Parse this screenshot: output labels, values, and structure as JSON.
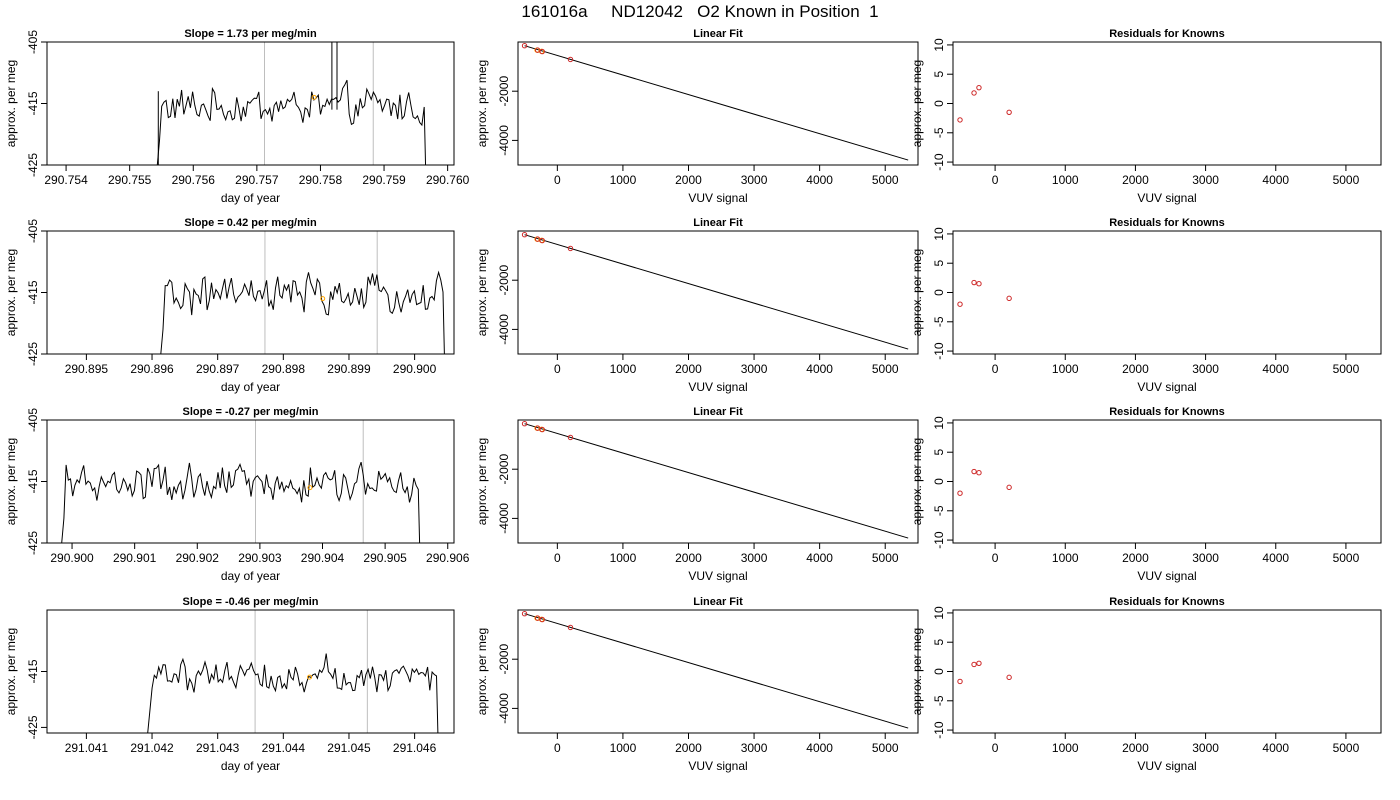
{
  "title": "161016a     ND12042   O2 Known in Position  1",
  "colors": {
    "trace": "#000000",
    "grid": "#bebebe",
    "marker": "#ffa500",
    "known": "#cd2626"
  },
  "chart_data": [
    {
      "type": "line",
      "title": "Slope =  1.73  per meg/min",
      "xlabel": "day of year",
      "ylabel": "approx. per meg",
      "xlim": [
        290.7537,
        290.7601
      ],
      "ylim": [
        -425,
        -405
      ],
      "xticks": [
        "290.754",
        "290.755",
        "290.756",
        "290.757",
        "290.758",
        "290.759",
        "290.760"
      ],
      "xtick_values": [
        290.754,
        290.755,
        290.756,
        290.757,
        290.758,
        290.759,
        290.76
      ],
      "yticks": [
        "-425",
        "-415",
        "-405"
      ],
      "ytick_values": [
        -425,
        -415,
        -405
      ],
      "vlines": [
        290.75712,
        290.75883
      ],
      "trace_start": 290.7554,
      "trace_end": 290.7597,
      "marker": {
        "x": 290.7579,
        "y": -414
      }
    },
    {
      "type": "line",
      "title": "Linear Fit",
      "xlabel": "VUV signal",
      "ylabel": "approx. per meg",
      "xlim": [
        -600,
        5500
      ],
      "ylim": [
        -5000,
        0
      ],
      "xticks": [
        "0",
        "1000",
        "2000",
        "3000",
        "4000",
        "5000"
      ],
      "xtick_values": [
        0,
        1000,
        2000,
        3000,
        4000,
        5000
      ],
      "yticks": [
        "-4000",
        "-2000"
      ],
      "ytick_values": [
        -4000,
        -2000
      ],
      "fit_line": {
        "x": [
          -500,
          5350
        ],
        "y": [
          -150,
          -4800
        ]
      },
      "knowns": {
        "x": [
          -500,
          -300,
          -230,
          200
        ],
        "y": [
          -150,
          -330,
          -390,
          -710
        ]
      },
      "samples": {
        "x": [
          -310,
          -240
        ],
        "y": [
          -330,
          -380
        ]
      }
    },
    {
      "type": "scatter",
      "title": "Residuals for Knowns",
      "xlabel": "VUV signal",
      "ylabel": "approx. per meg",
      "xlim": [
        -600,
        5500
      ],
      "ylim": [
        -10.5,
        10.5
      ],
      "xticks": [
        "0",
        "1000",
        "2000",
        "3000",
        "4000",
        "5000"
      ],
      "xtick_values": [
        0,
        1000,
        2000,
        3000,
        4000,
        5000
      ],
      "yticks": [
        "-10",
        "-5",
        "0",
        "5",
        "10"
      ],
      "ytick_values": [
        -10,
        -5,
        0,
        5,
        10
      ],
      "x": [
        -500,
        -300,
        -230,
        200
      ],
      "y": [
        -2.8,
        1.8,
        2.7,
        -1.5
      ]
    },
    {
      "type": "line",
      "title": "Slope =  0.42  per meg/min",
      "xlabel": "day of year",
      "ylabel": "approx. per meg",
      "xlim": [
        290.8944,
        290.9006
      ],
      "ylim": [
        -425,
        -405
      ],
      "xticks": [
        "290.895",
        "290.896",
        "290.897",
        "290.898",
        "290.899",
        "290.900"
      ],
      "xtick_values": [
        290.895,
        290.896,
        290.897,
        290.898,
        290.899,
        290.9
      ],
      "yticks": [
        "-425",
        "-415",
        "-405"
      ],
      "ytick_values": [
        -425,
        -415,
        -405
      ],
      "vlines": [
        290.89772,
        290.89943
      ],
      "trace_start": 290.8961,
      "trace_end": 290.9005,
      "marker": {
        "x": 290.8986,
        "y": -416
      }
    },
    {
      "type": "line",
      "title": "Linear Fit",
      "xlabel": "VUV signal",
      "ylabel": "approx. per meg",
      "xlim": [
        -600,
        5500
      ],
      "ylim": [
        -5000,
        0
      ],
      "xticks": [
        "0",
        "1000",
        "2000",
        "3000",
        "4000",
        "5000"
      ],
      "xtick_values": [
        0,
        1000,
        2000,
        3000,
        4000,
        5000
      ],
      "yticks": [
        "-4000",
        "-2000"
      ],
      "ytick_values": [
        -4000,
        -2000
      ],
      "fit_line": {
        "x": [
          -500,
          5350
        ],
        "y": [
          -150,
          -4800
        ]
      },
      "knowns": {
        "x": [
          -500,
          -300,
          -230,
          200
        ],
        "y": [
          -150,
          -330,
          -390,
          -710
        ]
      },
      "samples": {
        "x": [
          -310,
          -240
        ],
        "y": [
          -330,
          -380
        ]
      }
    },
    {
      "type": "scatter",
      "title": "Residuals for Knowns",
      "xlabel": "VUV signal",
      "ylabel": "approx. per meg",
      "xlim": [
        -600,
        5500
      ],
      "ylim": [
        -10.5,
        10.5
      ],
      "xticks": [
        "0",
        "1000",
        "2000",
        "3000",
        "4000",
        "5000"
      ],
      "xtick_values": [
        0,
        1000,
        2000,
        3000,
        4000,
        5000
      ],
      "yticks": [
        "-10",
        "-5",
        "0",
        "5",
        "10"
      ],
      "ytick_values": [
        -10,
        -5,
        0,
        5,
        10
      ],
      "x": [
        -500,
        -300,
        -230,
        200
      ],
      "y": [
        -2.0,
        1.7,
        1.5,
        -1.0
      ]
    },
    {
      "type": "line",
      "title": "Slope =  -0.27  per meg/min",
      "xlabel": "day of year",
      "ylabel": "approx. per meg",
      "xlim": [
        290.8996,
        290.9061
      ],
      "ylim": [
        -425,
        -405
      ],
      "xticks": [
        "290.900",
        "290.901",
        "290.902",
        "290.903",
        "290.904",
        "290.905",
        "290.906"
      ],
      "xtick_values": [
        290.9,
        290.901,
        290.902,
        290.903,
        290.904,
        290.905,
        290.906
      ],
      "yticks": [
        "-425",
        "-415",
        "-405"
      ],
      "ytick_values": [
        -425,
        -415,
        -405
      ],
      "vlines": [
        290.90293,
        290.90465
      ],
      "trace_start": 290.8998,
      "trace_end": 290.9056,
      "marker": {
        "x": 290.9038,
        "y": -416
      }
    },
    {
      "type": "line",
      "title": "Linear Fit",
      "xlabel": "VUV signal",
      "ylabel": "approx. per meg",
      "xlim": [
        -600,
        5500
      ],
      "ylim": [
        -5000,
        0
      ],
      "xticks": [
        "0",
        "1000",
        "2000",
        "3000",
        "4000",
        "5000"
      ],
      "xtick_values": [
        0,
        1000,
        2000,
        3000,
        4000,
        5000
      ],
      "yticks": [
        "-4000",
        "-2000"
      ],
      "ytick_values": [
        -4000,
        -2000
      ],
      "fit_line": {
        "x": [
          -500,
          5350
        ],
        "y": [
          -150,
          -4800
        ]
      },
      "knowns": {
        "x": [
          -500,
          -300,
          -230,
          200
        ],
        "y": [
          -150,
          -330,
          -390,
          -710
        ]
      },
      "samples": {
        "x": [
          -310,
          -240
        ],
        "y": [
          -330,
          -380
        ]
      }
    },
    {
      "type": "scatter",
      "title": "Residuals for Knowns",
      "xlabel": "VUV signal",
      "ylabel": "approx. per meg",
      "xlim": [
        -600,
        5500
      ],
      "ylim": [
        -10.5,
        10.5
      ],
      "xticks": [
        "0",
        "1000",
        "2000",
        "3000",
        "4000",
        "5000"
      ],
      "xtick_values": [
        0,
        1000,
        2000,
        3000,
        4000,
        5000
      ],
      "yticks": [
        "-10",
        "-5",
        "0",
        "5",
        "10"
      ],
      "ytick_values": [
        -10,
        -5,
        0,
        5,
        10
      ],
      "x": [
        -500,
        -300,
        -230,
        200
      ],
      "y": [
        -2.0,
        1.7,
        1.5,
        -1.0
      ]
    },
    {
      "type": "line",
      "title": "Slope =  -0.46  per meg/min",
      "xlabel": "day of year",
      "ylabel": "approx. per meg",
      "xlim": [
        291.0404,
        291.0466
      ],
      "ylim": [
        -426,
        -404
      ],
      "xticks": [
        "291.041",
        "291.042",
        "291.043",
        "291.044",
        "291.045",
        "291.046"
      ],
      "xtick_values": [
        291.041,
        291.042,
        291.043,
        291.044,
        291.045,
        291.046
      ],
      "yticks": [
        "-425",
        "-415"
      ],
      "ytick_values": [
        -425,
        -415
      ],
      "vlines": [
        291.04357,
        291.04528
      ],
      "trace_start": 291.0419,
      "trace_end": 291.0464,
      "marker": {
        "x": 291.0444,
        "y": -416
      }
    },
    {
      "type": "line",
      "title": "Linear Fit",
      "xlabel": "VUV signal",
      "ylabel": "approx. per meg",
      "xlim": [
        -600,
        5500
      ],
      "ylim": [
        -5000,
        0
      ],
      "xticks": [
        "0",
        "1000",
        "2000",
        "3000",
        "4000",
        "5000"
      ],
      "xtick_values": [
        0,
        1000,
        2000,
        3000,
        4000,
        5000
      ],
      "yticks": [
        "-4000",
        "-2000"
      ],
      "ytick_values": [
        -4000,
        -2000
      ],
      "fit_line": {
        "x": [
          -500,
          5350
        ],
        "y": [
          -150,
          -4800
        ]
      },
      "knowns": {
        "x": [
          -500,
          -300,
          -230,
          200
        ],
        "y": [
          -150,
          -330,
          -390,
          -710
        ]
      },
      "samples": {
        "x": [
          -310,
          -240
        ],
        "y": [
          -330,
          -380
        ]
      }
    },
    {
      "type": "scatter",
      "title": "Residuals for Knowns",
      "xlabel": "VUV signal",
      "ylabel": "approx. per meg",
      "xlim": [
        -600,
        5500
      ],
      "ylim": [
        -10.5,
        10.5
      ],
      "xticks": [
        "0",
        "1000",
        "2000",
        "3000",
        "4000",
        "5000"
      ],
      "xtick_values": [
        0,
        1000,
        2000,
        3000,
        4000,
        5000
      ],
      "yticks": [
        "-10",
        "-5",
        "0",
        "5",
        "10"
      ],
      "ytick_values": [
        -10,
        -5,
        0,
        5,
        10
      ],
      "x": [
        -500,
        -300,
        -230,
        200
      ],
      "y": [
        -1.7,
        1.2,
        1.4,
        -1.0
      ]
    }
  ]
}
